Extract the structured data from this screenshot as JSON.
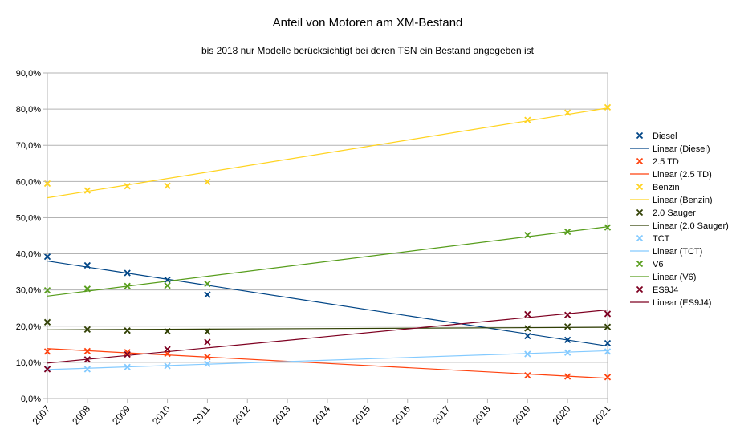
{
  "chart_data": {
    "type": "scatter",
    "title": "Anteil von Motoren am XM-Bestand",
    "subtitle": "bis 2018 nur Modelle berücksichtigt bei deren TSN ein Bestand angegeben ist",
    "xlabel": "",
    "ylabel": "",
    "x_ticks": [
      "2007",
      "2008",
      "2009",
      "2010",
      "2011",
      "2012",
      "2013",
      "2014",
      "2015",
      "2016",
      "2017",
      "2018",
      "2019",
      "2020",
      "2021"
    ],
    "xlim": [
      2007,
      2021
    ],
    "y_ticks": [
      "0,0%",
      "10,0%",
      "20,0%",
      "30,0%",
      "40,0%",
      "50,0%",
      "60,0%",
      "70,0%",
      "80,0%",
      "90,0%"
    ],
    "ylim": [
      0,
      90
    ],
    "grid": "horizontal",
    "legend_position": "right",
    "series": [
      {
        "name": "Diesel",
        "color": "#004586",
        "points": [
          [
            2007,
            39.2
          ],
          [
            2008,
            36.8
          ],
          [
            2009,
            34.7
          ],
          [
            2010,
            32.8
          ],
          [
            2011,
            28.7
          ],
          [
            2019,
            17.3
          ],
          [
            2020,
            16.2
          ],
          [
            2021,
            15.3
          ]
        ],
        "trend": {
          "name": "Linear (Diesel)",
          "y_start": 38.0,
          "y_end": 14.5
        }
      },
      {
        "name": "2.5 TD",
        "color": "#ff420e",
        "points": [
          [
            2007,
            13.0
          ],
          [
            2008,
            13.1
          ],
          [
            2009,
            12.8
          ],
          [
            2010,
            12.4
          ],
          [
            2011,
            11.5
          ],
          [
            2019,
            6.4
          ],
          [
            2020,
            6.1
          ],
          [
            2021,
            5.9
          ]
        ],
        "trend": {
          "name": "Linear (2.5 TD)",
          "y_start": 13.8,
          "y_end": 5.6
        }
      },
      {
        "name": "Benzin",
        "color": "#ffd320",
        "points": [
          [
            2007,
            59.4
          ],
          [
            2008,
            57.5
          ],
          [
            2009,
            58.7
          ],
          [
            2010,
            58.8
          ],
          [
            2011,
            59.9
          ],
          [
            2019,
            77.0
          ],
          [
            2020,
            79.0
          ],
          [
            2021,
            80.5
          ]
        ],
        "trend": {
          "name": "Linear (Benzin)",
          "y_start": 55.5,
          "y_end": 80.3
        }
      },
      {
        "name": "2.0 Sauger",
        "color": "#314004",
        "points": [
          [
            2007,
            21.1
          ],
          [
            2008,
            19.1
          ],
          [
            2009,
            18.8
          ],
          [
            2010,
            18.6
          ],
          [
            2011,
            18.5
          ],
          [
            2019,
            19.4
          ],
          [
            2020,
            19.9
          ],
          [
            2021,
            19.8
          ]
        ],
        "trend": {
          "name": "Linear (2.0 Sauger)",
          "y_start": 19.0,
          "y_end": 19.7
        }
      },
      {
        "name": "TCT",
        "color": "#83caff",
        "points": [
          [
            2007,
            8.2
          ],
          [
            2008,
            8.1
          ],
          [
            2009,
            8.7
          ],
          [
            2010,
            9.0
          ],
          [
            2011,
            9.6
          ],
          [
            2019,
            12.3
          ],
          [
            2020,
            12.7
          ],
          [
            2021,
            13.0
          ]
        ],
        "trend": {
          "name": "Linear (TCT)",
          "y_start": 8.0,
          "y_end": 13.2
        }
      },
      {
        "name": "V6",
        "color": "#579d1c",
        "points": [
          [
            2007,
            29.9
          ],
          [
            2008,
            30.3
          ],
          [
            2009,
            31.1
          ],
          [
            2010,
            31.2
          ],
          [
            2011,
            31.7
          ],
          [
            2019,
            45.2
          ],
          [
            2020,
            46.1
          ],
          [
            2021,
            47.3
          ]
        ],
        "trend": {
          "name": "Linear (V6)",
          "y_start": 28.3,
          "y_end": 47.5
        }
      },
      {
        "name": "ES9J4",
        "color": "#7e0021",
        "points": [
          [
            2007,
            8.1
          ],
          [
            2008,
            10.8
          ],
          [
            2009,
            12.2
          ],
          [
            2010,
            13.6
          ],
          [
            2011,
            15.6
          ],
          [
            2019,
            23.3
          ],
          [
            2020,
            23.1
          ],
          [
            2021,
            23.4
          ]
        ],
        "trend": {
          "name": "Linear (ES9J4)",
          "y_start": 9.8,
          "y_end": 24.5
        }
      }
    ]
  }
}
